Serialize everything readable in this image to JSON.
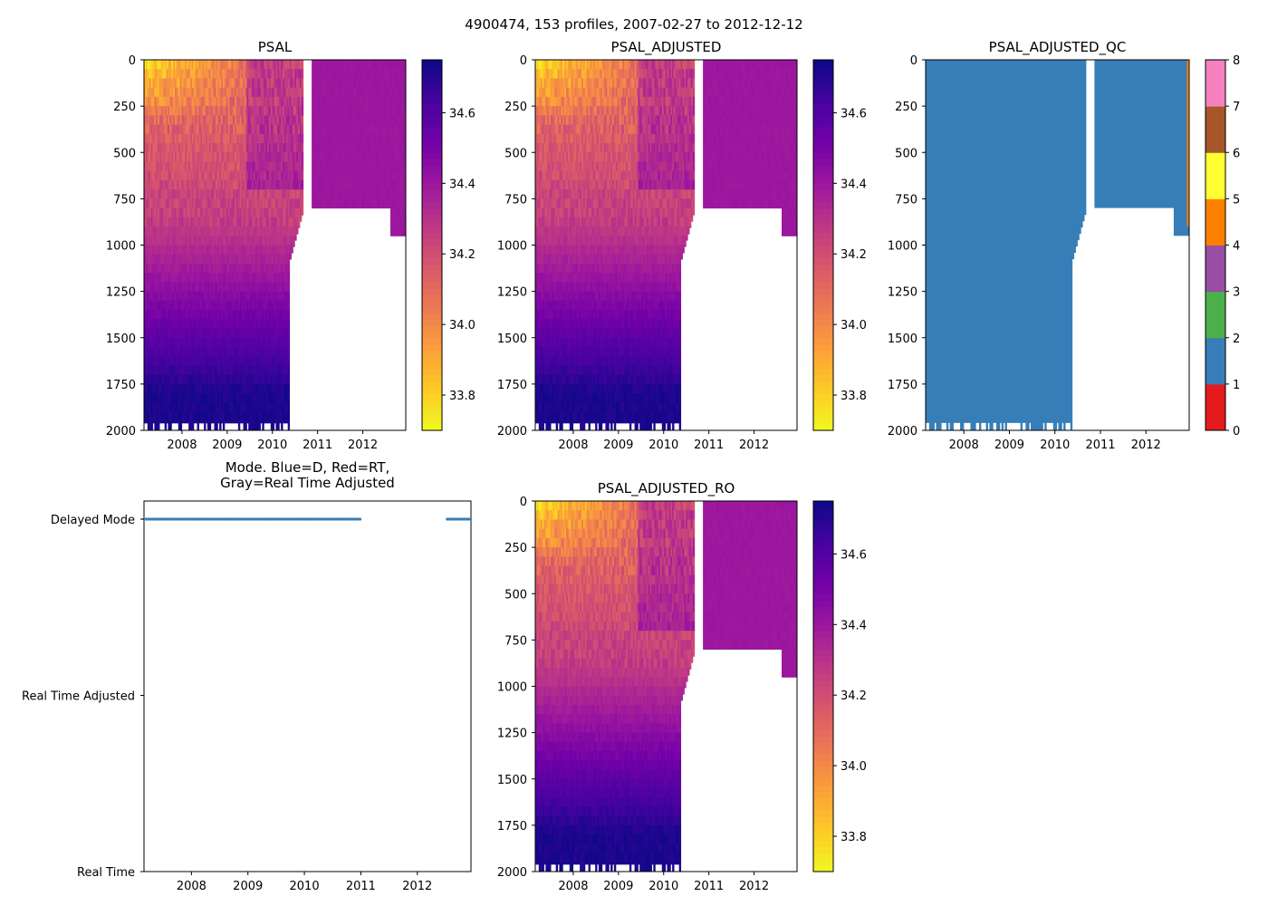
{
  "suptitle": "4900474, 153 profiles, 2007-02-27 to 2012-12-12",
  "chart_data": [
    {
      "id": "psal",
      "type": "heatmap",
      "title": "PSAL",
      "xlim": [
        2007.16,
        2012.95
      ],
      "ylim": [
        2000,
        0
      ],
      "x_ticks": [
        {
          "v": 2008,
          "label": "2008"
        },
        {
          "v": 2009,
          "label": "2009"
        },
        {
          "v": 2010,
          "label": "2010"
        },
        {
          "v": 2011,
          "label": "2011"
        },
        {
          "v": 2012,
          "label": "2012"
        }
      ],
      "y_ticks": [
        {
          "v": 0,
          "label": "0"
        },
        {
          "v": 250,
          "label": "250"
        },
        {
          "v": 500,
          "label": "500"
        },
        {
          "v": 750,
          "label": "750"
        },
        {
          "v": 1000,
          "label": "1000"
        },
        {
          "v": 1250,
          "label": "1250"
        },
        {
          "v": 1500,
          "label": "1500"
        },
        {
          "v": 1750,
          "label": "1750"
        },
        {
          "v": 2000,
          "label": "2000"
        }
      ],
      "colorbar": {
        "colormap": "plasma_r",
        "range": [
          33.7,
          34.75
        ],
        "ticks": [
          {
            "v": 33.8,
            "label": "33.8"
          },
          {
            "v": 34.0,
            "label": "34.0"
          },
          {
            "v": 34.2,
            "label": "34.2"
          },
          {
            "v": 34.4,
            "label": "34.4"
          },
          {
            "v": 34.6,
            "label": "34.6"
          }
        ]
      },
      "field": {
        "deep_profiles_end": 2010.65,
        "shallow_profiles_start": 2010.85,
        "shallow_max_depth": 800,
        "surface_salinity_min": 33.75,
        "deep_salinity": 34.72,
        "shallow_layer_salinity": 34.4
      }
    },
    {
      "id": "psal_adjusted",
      "type": "heatmap",
      "title": "PSAL_ADJUSTED",
      "xlim": [
        2007.16,
        2012.95
      ],
      "ylim": [
        2000,
        0
      ],
      "x_ticks": [
        {
          "v": 2008,
          "label": "2008"
        },
        {
          "v": 2009,
          "label": "2009"
        },
        {
          "v": 2010,
          "label": "2010"
        },
        {
          "v": 2011,
          "label": "2011"
        },
        {
          "v": 2012,
          "label": "2012"
        }
      ],
      "y_ticks": [
        {
          "v": 0,
          "label": "0"
        },
        {
          "v": 250,
          "label": "250"
        },
        {
          "v": 500,
          "label": "500"
        },
        {
          "v": 750,
          "label": "750"
        },
        {
          "v": 1000,
          "label": "1000"
        },
        {
          "v": 1250,
          "label": "1250"
        },
        {
          "v": 1500,
          "label": "1500"
        },
        {
          "v": 1750,
          "label": "1750"
        },
        {
          "v": 2000,
          "label": "2000"
        }
      ],
      "colorbar": {
        "colormap": "plasma_r",
        "range": [
          33.7,
          34.75
        ],
        "ticks": [
          {
            "v": 33.8,
            "label": "33.8"
          },
          {
            "v": 34.0,
            "label": "34.0"
          },
          {
            "v": 34.2,
            "label": "34.2"
          },
          {
            "v": 34.4,
            "label": "34.4"
          },
          {
            "v": 34.6,
            "label": "34.6"
          }
        ]
      },
      "field": {
        "deep_profiles_end": 2010.65,
        "shallow_profiles_start": 2010.85,
        "shallow_max_depth": 800,
        "surface_salinity_min": 33.75,
        "deep_salinity": 34.72,
        "shallow_layer_salinity": 34.4
      }
    },
    {
      "id": "psal_adjusted_qc",
      "type": "heatmap",
      "title": "PSAL_ADJUSTED_QC",
      "xlim": [
        2007.16,
        2012.95
      ],
      "ylim": [
        2000,
        0
      ],
      "x_ticks": [
        {
          "v": 2008,
          "label": "2008"
        },
        {
          "v": 2009,
          "label": "2009"
        },
        {
          "v": 2010,
          "label": "2010"
        },
        {
          "v": 2011,
          "label": "2011"
        },
        {
          "v": 2012,
          "label": "2012"
        }
      ],
      "y_ticks": [
        {
          "v": 0,
          "label": "0"
        },
        {
          "v": 250,
          "label": "250"
        },
        {
          "v": 500,
          "label": "500"
        },
        {
          "v": 750,
          "label": "750"
        },
        {
          "v": 1000,
          "label": "1000"
        },
        {
          "v": 1250,
          "label": "1250"
        },
        {
          "v": 1500,
          "label": "1500"
        },
        {
          "v": 1750,
          "label": "1750"
        },
        {
          "v": 2000,
          "label": "2000"
        }
      ],
      "dominant_flag": 1,
      "colorbar": {
        "range": [
          0,
          8
        ],
        "categories": [
          {
            "flag": 0,
            "color": "#e41a1c"
          },
          {
            "flag": 1,
            "color": "#377eb8"
          },
          {
            "flag": 2,
            "color": "#4daf4a"
          },
          {
            "flag": 3,
            "color": "#984ea3"
          },
          {
            "flag": 4,
            "color": "#ff7f00"
          },
          {
            "flag": 5,
            "color": "#ffff33"
          },
          {
            "flag": 6,
            "color": "#a65628"
          },
          {
            "flag": 7,
            "color": "#f781bf"
          }
        ],
        "ticks": [
          {
            "v": 0,
            "label": "0"
          },
          {
            "v": 1,
            "label": "1"
          },
          {
            "v": 2,
            "label": "2"
          },
          {
            "v": 3,
            "label": "3"
          },
          {
            "v": 4,
            "label": "4"
          },
          {
            "v": 5,
            "label": "5"
          },
          {
            "v": 6,
            "label": "6"
          },
          {
            "v": 7,
            "label": "7"
          },
          {
            "v": 8,
            "label": "8"
          }
        ]
      },
      "overflow_color": "#999999"
    },
    {
      "id": "mode",
      "type": "scatter",
      "title_lines": [
        "Mode. Blue=D, Red=RT,",
        "Gray=Real Time Adjusted"
      ],
      "xlim": [
        2007.16,
        2012.95
      ],
      "x_ticks": [
        {
          "v": 2008,
          "label": "2008"
        },
        {
          "v": 2009,
          "label": "2009"
        },
        {
          "v": 2010,
          "label": "2010"
        },
        {
          "v": 2011,
          "label": "2011"
        },
        {
          "v": 2012,
          "label": "2012"
        }
      ],
      "categories": [
        "Real Time",
        "Real Time Adjusted",
        "Delayed Mode"
      ],
      "series": [
        {
          "name": "Delayed Mode",
          "color": "#377eb8",
          "segments": [
            [
              2007.16,
              2011.0
            ],
            [
              2012.53,
              2012.95
            ]
          ]
        }
      ]
    },
    {
      "id": "psal_adjusted_ro",
      "type": "heatmap",
      "title": "PSAL_ADJUSTED_RO",
      "xlim": [
        2007.16,
        2012.95
      ],
      "ylim": [
        2000,
        0
      ],
      "x_ticks": [
        {
          "v": 2008,
          "label": "2008"
        },
        {
          "v": 2009,
          "label": "2009"
        },
        {
          "v": 2010,
          "label": "2010"
        },
        {
          "v": 2011,
          "label": "2011"
        },
        {
          "v": 2012,
          "label": "2012"
        }
      ],
      "y_ticks": [
        {
          "v": 0,
          "label": "0"
        },
        {
          "v": 250,
          "label": "250"
        },
        {
          "v": 500,
          "label": "500"
        },
        {
          "v": 750,
          "label": "750"
        },
        {
          "v": 1000,
          "label": "1000"
        },
        {
          "v": 1250,
          "label": "1250"
        },
        {
          "v": 1500,
          "label": "1500"
        },
        {
          "v": 1750,
          "label": "1750"
        },
        {
          "v": 2000,
          "label": "2000"
        }
      ],
      "colorbar": {
        "colormap": "plasma_r",
        "range": [
          33.7,
          34.75
        ],
        "ticks": [
          {
            "v": 33.8,
            "label": "33.8"
          },
          {
            "v": 34.0,
            "label": "34.0"
          },
          {
            "v": 34.2,
            "label": "34.2"
          },
          {
            "v": 34.4,
            "label": "34.4"
          },
          {
            "v": 34.6,
            "label": "34.6"
          }
        ]
      },
      "field": {
        "deep_profiles_end": 2010.65,
        "shallow_profiles_start": 2010.85,
        "shallow_max_depth": 800,
        "surface_salinity_min": 33.75,
        "deep_salinity": 34.72,
        "shallow_layer_salinity": 34.4
      }
    }
  ]
}
